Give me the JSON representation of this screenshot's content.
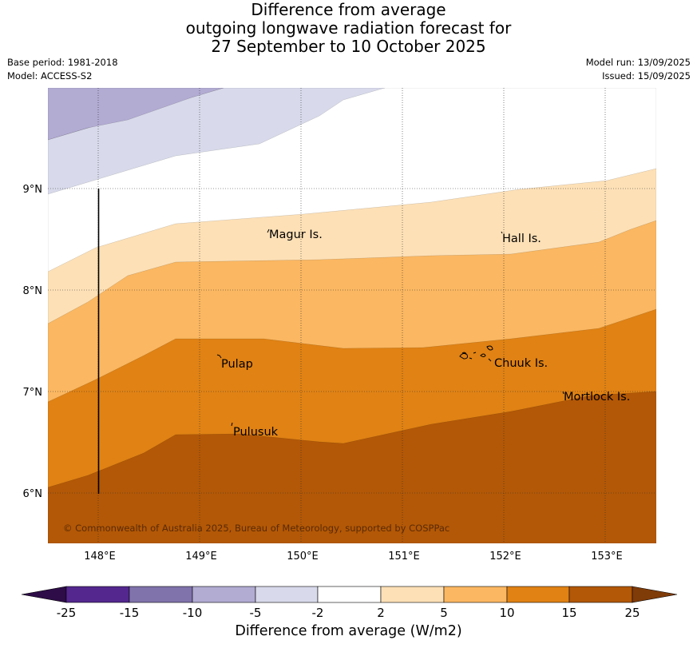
{
  "title_lines": [
    "Difference from average",
    "outgoing longwave radiation forecast for",
    "27 September to 10 October 2025"
  ],
  "meta_left": [
    "Base period: 1981-2018",
    "Model: ACCESS-S2"
  ],
  "meta_right": [
    "Model run: 13/09/2025",
    "Issued: 15/09/2025"
  ],
  "map": {
    "lon_ticks": [
      "148°E",
      "149°E",
      "150°E",
      "151°E",
      "152°E",
      "153°E"
    ],
    "lat_ticks": [
      "9°N",
      "8°N",
      "7°N",
      "6°N"
    ],
    "place_labels": [
      "Magur Is.",
      "Hall Is.",
      "Pulap",
      "Chuuk Is.",
      "Pulusuk",
      "Mortlock Is."
    ],
    "copyright": "© Commonwealth of Australia 2025, Bureau of Meteorology, supported by COSPPac"
  },
  "colorbar": {
    "ticks": [
      "-25",
      "-15",
      "-10",
      "-5",
      "-2",
      "2",
      "5",
      "10",
      "15",
      "25"
    ],
    "colors": {
      "below_-25": "#2d0c47",
      "-25_-15": "#54278f",
      "-15_-10": "#8073ac",
      "-10_-5": "#b2abd2",
      "-5_-2": "#d8daeb",
      "-2_2": "#ffffff",
      "2_5": "#fde0b6",
      "5_10": "#fbb761",
      "10_15": "#e08214",
      "15_25": "#b35806",
      "above_25": "#7f3b08"
    },
    "title": "Difference from average (W/m2)"
  }
}
